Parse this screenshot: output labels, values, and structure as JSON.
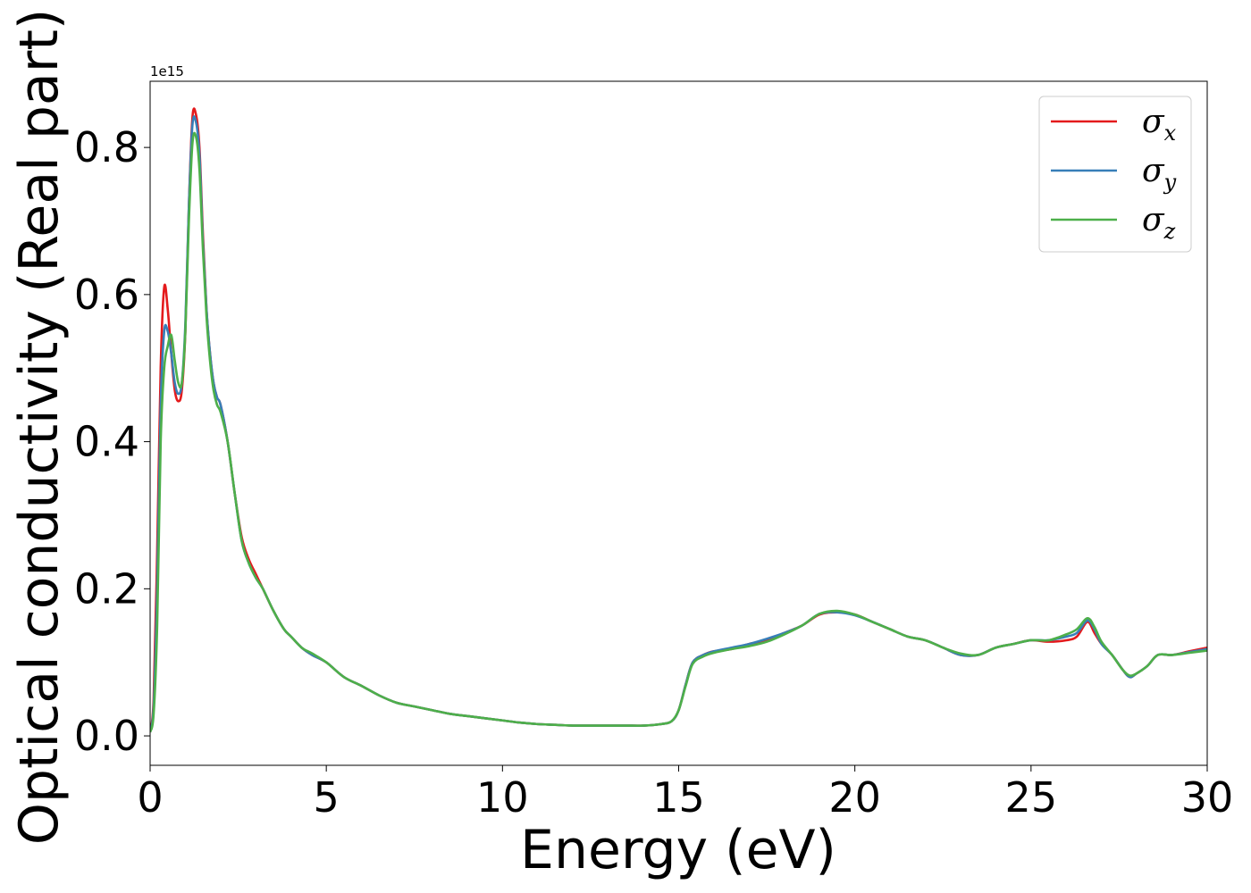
{
  "chart_data": {
    "type": "line",
    "xlabel": "Energy (eV)",
    "ylabel": "Optical conductivity (Real part)",
    "offset_text": "1e15",
    "xlim": [
      0,
      30
    ],
    "ylim": [
      -0.04,
      0.89
    ],
    "xticks": [
      "0",
      "5",
      "10",
      "15",
      "20",
      "25",
      "30"
    ],
    "yticks": [
      "0.0",
      "0.2",
      "0.4",
      "0.6",
      "0.8"
    ],
    "grid": false,
    "legend_position": "top-right",
    "x": [
      0,
      0.1,
      0.2,
      0.3,
      0.4,
      0.5,
      0.6,
      0.7,
      0.8,
      0.9,
      1.0,
      1.1,
      1.2,
      1.3,
      1.4,
      1.5,
      1.6,
      1.7,
      1.8,
      1.9,
      2.0,
      2.2,
      2.4,
      2.6,
      2.8,
      3.0,
      3.2,
      3.5,
      3.8,
      4.0,
      4.3,
      4.6,
      5.0,
      5.5,
      6.0,
      6.5,
      7.0,
      7.5,
      8.0,
      8.5,
      9.0,
      9.5,
      10.0,
      10.5,
      11.0,
      11.5,
      12.0,
      12.5,
      13.0,
      13.5,
      14.0,
      14.5,
      14.8,
      15.0,
      15.2,
      15.4,
      15.7,
      16.0,
      16.5,
      17.0,
      17.5,
      18.0,
      18.5,
      19.0,
      19.5,
      20.0,
      20.5,
      21.0,
      21.5,
      22.0,
      22.5,
      23.0,
      23.5,
      24.0,
      24.5,
      25.0,
      25.5,
      26.0,
      26.3,
      26.6,
      26.8,
      27.0,
      27.3,
      27.6,
      27.8,
      28.0,
      28.3,
      28.6,
      29.0,
      29.5,
      30.0
    ],
    "series": [
      {
        "name": "σx",
        "label_base": "σ",
        "label_sub": "x",
        "color": "#e41a1c",
        "values": [
          0.005,
          0.05,
          0.25,
          0.5,
          0.61,
          0.58,
          0.52,
          0.47,
          0.455,
          0.47,
          0.55,
          0.72,
          0.84,
          0.845,
          0.8,
          0.68,
          0.58,
          0.52,
          0.48,
          0.46,
          0.45,
          0.4,
          0.33,
          0.27,
          0.24,
          0.22,
          0.2,
          0.17,
          0.145,
          0.135,
          0.12,
          0.11,
          0.1,
          0.08,
          0.068,
          0.055,
          0.045,
          0.04,
          0.035,
          0.03,
          0.027,
          0.024,
          0.021,
          0.018,
          0.016,
          0.015,
          0.014,
          0.014,
          0.014,
          0.014,
          0.014,
          0.016,
          0.02,
          0.035,
          0.07,
          0.1,
          0.11,
          0.115,
          0.118,
          0.125,
          0.13,
          0.14,
          0.15,
          0.165,
          0.168,
          0.165,
          0.155,
          0.145,
          0.135,
          0.13,
          0.12,
          0.11,
          0.11,
          0.12,
          0.125,
          0.13,
          0.128,
          0.13,
          0.135,
          0.155,
          0.14,
          0.125,
          0.11,
          0.09,
          0.08,
          0.085,
          0.095,
          0.11,
          0.11,
          0.115,
          0.12
        ]
      },
      {
        "name": "σy",
        "label_base": "σ",
        "label_sub": "y",
        "color": "#377eb8",
        "values": [
          0.005,
          0.04,
          0.2,
          0.45,
          0.55,
          0.55,
          0.52,
          0.48,
          0.465,
          0.48,
          0.56,
          0.72,
          0.83,
          0.835,
          0.79,
          0.67,
          0.58,
          0.52,
          0.48,
          0.46,
          0.45,
          0.4,
          0.33,
          0.265,
          0.235,
          0.215,
          0.2,
          0.17,
          0.145,
          0.135,
          0.12,
          0.11,
          0.1,
          0.08,
          0.068,
          0.055,
          0.045,
          0.04,
          0.035,
          0.03,
          0.027,
          0.024,
          0.021,
          0.018,
          0.016,
          0.015,
          0.014,
          0.014,
          0.014,
          0.014,
          0.014,
          0.016,
          0.02,
          0.035,
          0.07,
          0.1,
          0.11,
          0.115,
          0.12,
          0.125,
          0.132,
          0.14,
          0.15,
          0.166,
          0.168,
          0.164,
          0.155,
          0.145,
          0.135,
          0.13,
          0.12,
          0.11,
          0.11,
          0.12,
          0.125,
          0.13,
          0.13,
          0.135,
          0.14,
          0.157,
          0.145,
          0.125,
          0.11,
          0.09,
          0.08,
          0.085,
          0.095,
          0.11,
          0.11,
          0.114,
          0.118
        ]
      },
      {
        "name": "σz",
        "label_base": "σ",
        "label_sub": "z",
        "color": "#4daf4a",
        "values": [
          0.005,
          0.03,
          0.15,
          0.4,
          0.5,
          0.53,
          0.545,
          0.51,
          0.48,
          0.48,
          0.55,
          0.7,
          0.805,
          0.815,
          0.77,
          0.66,
          0.57,
          0.51,
          0.47,
          0.45,
          0.44,
          0.4,
          0.33,
          0.265,
          0.235,
          0.215,
          0.2,
          0.17,
          0.145,
          0.135,
          0.12,
          0.112,
          0.1,
          0.08,
          0.068,
          0.055,
          0.045,
          0.04,
          0.035,
          0.03,
          0.027,
          0.024,
          0.021,
          0.018,
          0.016,
          0.015,
          0.014,
          0.014,
          0.014,
          0.014,
          0.014,
          0.016,
          0.02,
          0.035,
          0.068,
          0.098,
          0.108,
          0.113,
          0.118,
          0.122,
          0.128,
          0.138,
          0.15,
          0.166,
          0.17,
          0.165,
          0.155,
          0.145,
          0.135,
          0.13,
          0.12,
          0.112,
          0.11,
          0.12,
          0.125,
          0.13,
          0.13,
          0.138,
          0.145,
          0.16,
          0.148,
          0.128,
          0.11,
          0.09,
          0.082,
          0.085,
          0.095,
          0.11,
          0.11,
          0.113,
          0.116
        ]
      }
    ]
  }
}
